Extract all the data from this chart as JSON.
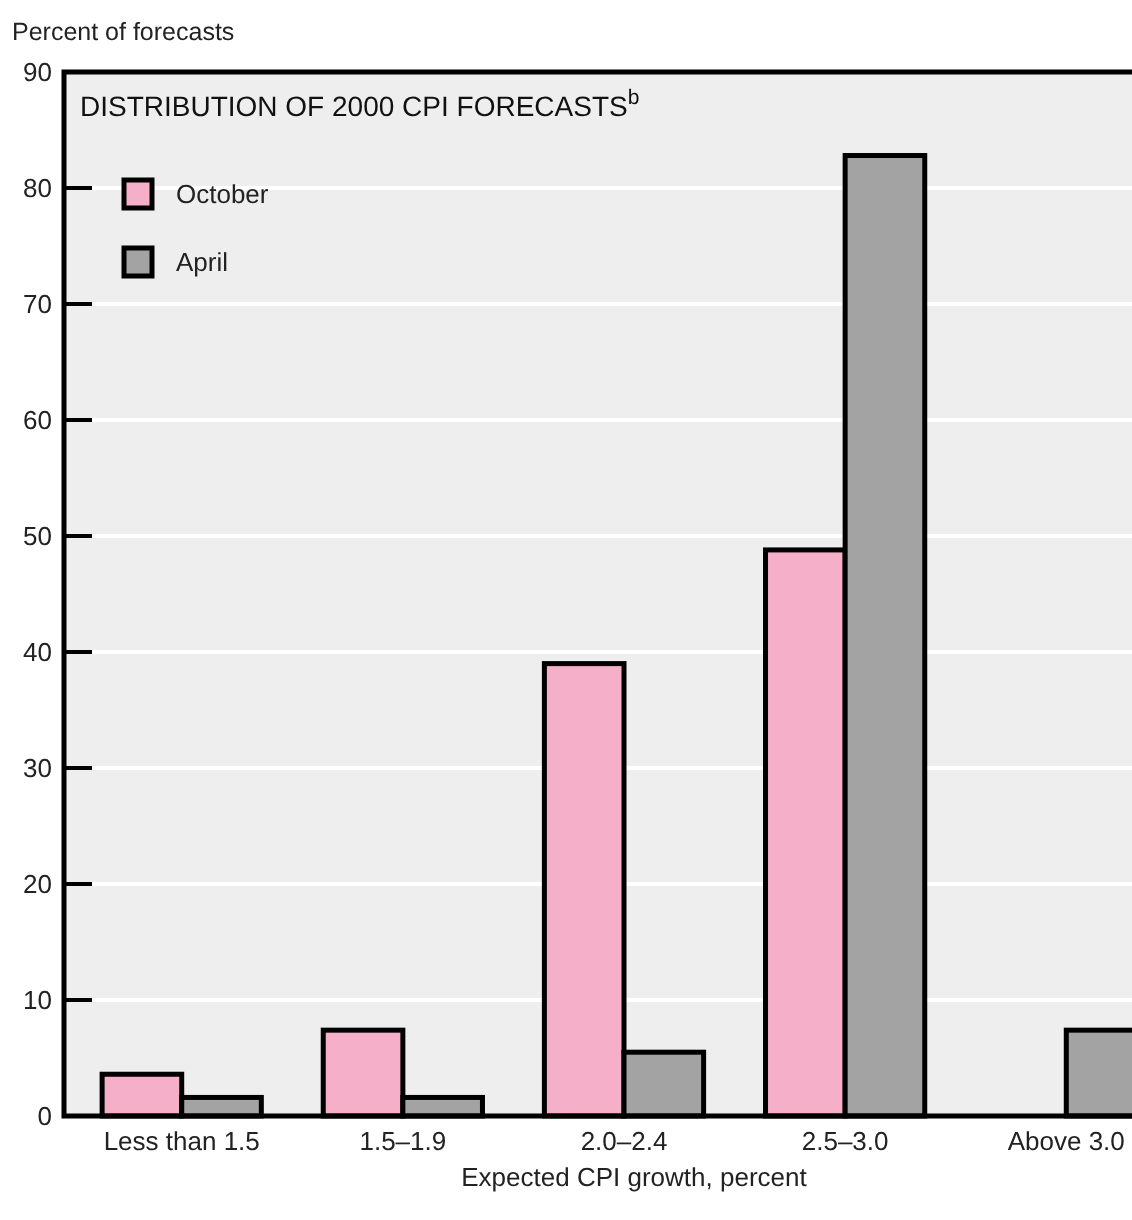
{
  "chart_data": {
    "type": "bar",
    "title": "DISTRIBUTION OF 2000 CPI FORECASTS$^{b}$",
    "xlabel": "Expected CPI growth, percent",
    "ylabel": "Percent of forecasts",
    "categories": [
      "Less than 1.5",
      "1.5–1.9",
      "2.0–2.4",
      "2.5–3.0",
      "Above 3.0"
    ],
    "series": [
      {
        "name": "October",
        "color": "#f5afc8",
        "values": [
          3.6,
          7.4,
          39,
          48.8,
          null
        ]
      },
      {
        "name": "April",
        "color": "#a3a3a3",
        "values": [
          1.6,
          1.6,
          5.5,
          82.8,
          7.4
        ]
      }
    ],
    "ylim": [
      0,
      90
    ],
    "yticks": [
      0,
      10,
      20,
      30,
      40,
      50,
      60,
      70,
      80,
      90
    ],
    "grid": "y",
    "legend": "top left"
  }
}
